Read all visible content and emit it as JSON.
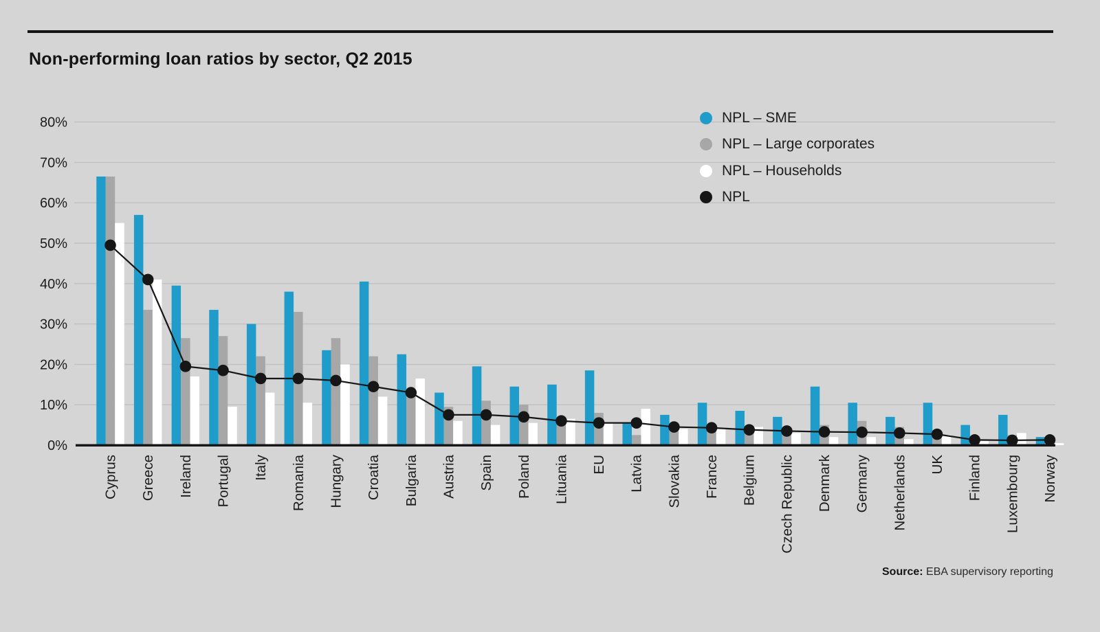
{
  "header": {
    "title": "Non-performing loan ratios by sector, Q2 2015"
  },
  "source": {
    "label": "Source:",
    "text": " EBA supervisory reporting"
  },
  "colors": {
    "background": "#d5d5d5",
    "gridline": "#c0c0c0",
    "axis": "#161616",
    "sme_blue": "#209cca",
    "large_corporates_gray": "#a7a7a7",
    "households_white": "#ffffff",
    "npl_black": "#161616",
    "text": "#1c1c1c"
  },
  "chart_data": {
    "type": "bar",
    "title": "Non-performing loan ratios by sector, Q2 2015",
    "xlabel": "",
    "ylabel": "",
    "ylim": [
      0,
      80
    ],
    "grid": true,
    "legend_position": "top-right",
    "y_ticks": [
      "0%",
      "10%",
      "20%",
      "30%",
      "40%",
      "50%",
      "60%",
      "70%",
      "80%"
    ],
    "categories": [
      "Cyprus",
      "Greece",
      "Ireland",
      "Portugal",
      "Italy",
      "Romania",
      "Hungary",
      "Croatia",
      "Bulgaria",
      "Austria",
      "Spain",
      "Poland",
      "Lituania",
      "EU",
      "Latvia",
      "Slovakia",
      "France",
      "Belgium",
      "Czech Republic",
      "Denmark",
      "Germany",
      "Netherlands",
      "UK",
      "Finland",
      "Luxembourg",
      "Norway"
    ],
    "series": [
      {
        "name": "NPL – SME",
        "type": "bar",
        "color": "#209cca",
        "values": [
          66.5,
          57,
          39.5,
          33.5,
          30,
          38,
          23.5,
          40.5,
          22.5,
          13,
          19.5,
          14.5,
          15,
          18.5,
          5.5,
          7.5,
          10.5,
          8.5,
          7,
          14.5,
          10.5,
          7,
          10.5,
          5,
          7.5,
          2
        ]
      },
      {
        "name": "NPL – Large corporates",
        "type": "bar",
        "color": "#a7a7a7",
        "values": [
          66.5,
          33.5,
          26.5,
          27,
          22,
          33,
          26.5,
          22,
          13.5,
          9.5,
          11,
          10,
          7,
          8,
          2.5,
          4,
          4.5,
          4,
          3.5,
          5,
          6,
          4.5,
          2,
          2,
          2.5,
          1.5
        ]
      },
      {
        "name": "NPL – Households",
        "type": "bar",
        "color": "#ffffff",
        "values": [
          55,
          41,
          17,
          9.5,
          13,
          10.5,
          20,
          12,
          16.5,
          6,
          5,
          5.5,
          6.5,
          5.5,
          9,
          4,
          4,
          4.5,
          3,
          2,
          2,
          1.5,
          2.5,
          1,
          3,
          0.5
        ]
      },
      {
        "name": "NPL",
        "type": "line",
        "color": "#161616",
        "values": [
          49.5,
          41,
          19.5,
          18.5,
          16.5,
          16.5,
          16,
          14.5,
          13,
          7.5,
          7.5,
          7,
          6,
          5.5,
          5.5,
          4.5,
          4.3,
          3.8,
          3.5,
          3.3,
          3.2,
          3,
          2.7,
          1.3,
          1.2,
          1.3
        ]
      }
    ]
  }
}
